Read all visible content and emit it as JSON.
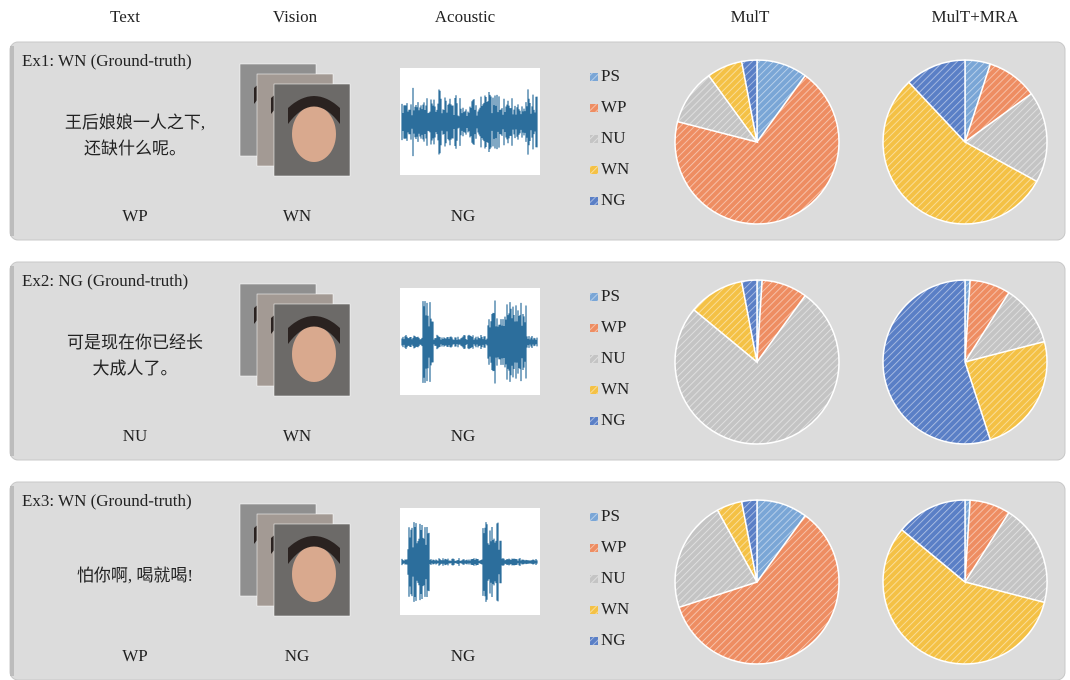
{
  "columns": [
    "Text",
    "Vision",
    "Acoustic",
    "MulT",
    "MulT+MRA"
  ],
  "examples": [
    {
      "text": [
        "王后娘娘一人之下,",
        "还缺什么呢。"
      ],
      "predictions": [
        "WP",
        "WN",
        "NG"
      ]
    },
    {
      "text": [
        "可是现在你已经长",
        "大成人了。"
      ],
      "predictions": [
        "NU",
        "WN",
        "NG"
      ]
    },
    {
      "text": [
        "怕你啊, 喝就喝!"
      ],
      "predictions": [
        "WP",
        "NG",
        "NG"
      ]
    }
  ],
  "chart_data": [
    {
      "type": "pie",
      "title": "Ex1: WN (Ground-truth)",
      "categories": [
        "PS",
        "WP",
        "NU",
        "WN",
        "NG"
      ],
      "colors": [
        "#7aa6d6",
        "#ee8d62",
        "#c4c4c4",
        "#f4c145",
        "#5a7fc6"
      ],
      "series": [
        {
          "values": [
            10,
            69,
            11,
            7,
            3
          ]
        },
        {
          "values": [
            5,
            10,
            18,
            55,
            12
          ]
        }
      ]
    },
    {
      "type": "pie",
      "title": "Ex2: NG (Ground-truth)",
      "categories": [
        "PS",
        "WP",
        "NU",
        "WN",
        "NG"
      ],
      "colors": [
        "#7aa6d6",
        "#ee8d62",
        "#c4c4c4",
        "#f4c145",
        "#5a7fc6"
      ],
      "series": [
        {
          "values": [
            1,
            9,
            76,
            11,
            3
          ]
        },
        {
          "values": [
            1,
            8,
            12,
            24,
            55
          ]
        }
      ]
    },
    {
      "type": "pie",
      "title": "Ex3: WN (Ground-truth)",
      "categories": [
        "PS",
        "WP",
        "NU",
        "WN",
        "NG"
      ],
      "colors": [
        "#7aa6d6",
        "#ee8d62",
        "#c4c4c4",
        "#f4c145",
        "#5a7fc6"
      ],
      "series": [
        {
          "values": [
            10,
            60,
            22,
            5,
            3
          ]
        },
        {
          "values": [
            1,
            8,
            20,
            57,
            14
          ]
        }
      ]
    }
  ]
}
